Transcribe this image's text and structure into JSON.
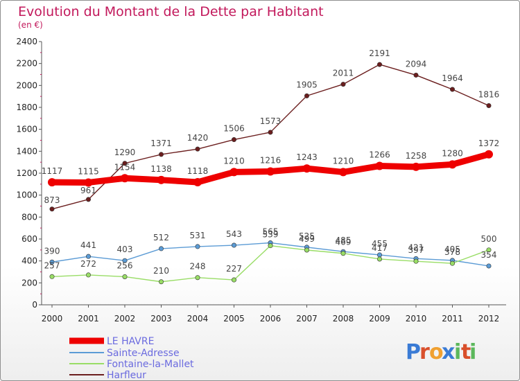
{
  "chart_data": {
    "type": "line",
    "title": "Evolution du Montant de la Dette par Habitant",
    "subtitle": "(en €)",
    "xlabel": "",
    "ylabel": "",
    "categories": [
      "2000",
      "2001",
      "2002",
      "2003",
      "2004",
      "2005",
      "2006",
      "2007",
      "2008",
      "2009",
      "2010",
      "2011",
      "2012"
    ],
    "ylim": [
      0,
      2400
    ],
    "yticks": [
      0,
      200,
      400,
      600,
      800,
      1000,
      1200,
      1400,
      1600,
      1800,
      2000,
      2200,
      2400
    ],
    "grid": false,
    "legend_position": "bottom-left",
    "series": [
      {
        "name": "LE HAVRE",
        "color": "#ee0000",
        "values": [
          1117,
          1115,
          1154,
          1138,
          1118,
          1210,
          1216,
          1243,
          1210,
          1266,
          1258,
          1280,
          1372
        ]
      },
      {
        "name": "Sainte-Adresse",
        "color": "#5b9bd5",
        "values": [
          390,
          441,
          403,
          512,
          531,
          543,
          565,
          525,
          485,
          455,
          421,
          405,
          354
        ]
      },
      {
        "name": "Fontaine-la-Mallet",
        "color": "#99dd66",
        "values": [
          257,
          272,
          256,
          210,
          248,
          227,
          539,
          499,
          469,
          417,
          397,
          378,
          500
        ]
      },
      {
        "name": "Harfleur",
        "color": "#6b1e1e",
        "values": [
          873,
          961,
          1290,
          1371,
          1420,
          1506,
          1573,
          1905,
          2011,
          2191,
          2094,
          1964,
          1816
        ]
      }
    ]
  },
  "logo": {
    "text": "Proxiti",
    "letters": [
      "P",
      "r",
      "o",
      "x",
      "i",
      "t",
      "i"
    ],
    "colors": [
      "#3a7bd5",
      "#d94f2b",
      "#f0a030",
      "#3a7bd5",
      "#5cb85c",
      "#d94f2b",
      "#5cb85c"
    ]
  }
}
